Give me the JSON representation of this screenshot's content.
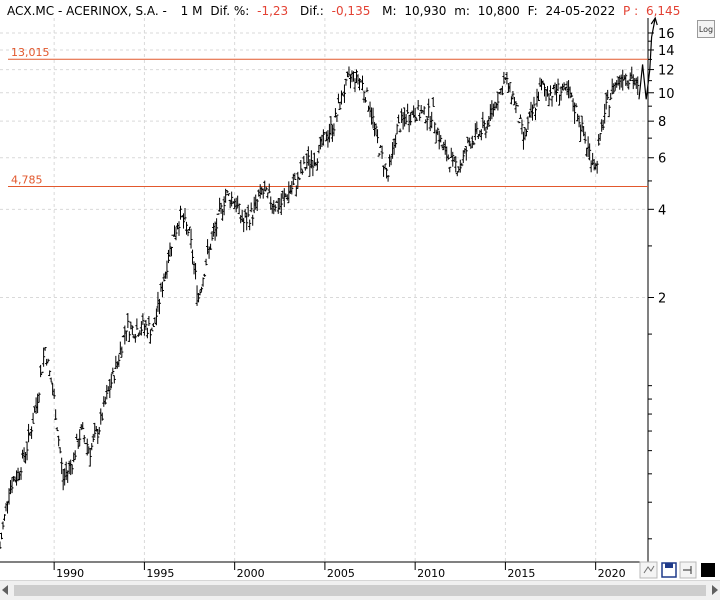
{
  "header": {
    "symbol": "ACX.MC - ACERINOX, S.A. -",
    "period": "1 M",
    "dif_pct_label": "Dif. %:",
    "dif_pct_value": "-1,23",
    "dif_label": "Dif.:",
    "dif_value": "-0,135",
    "max_label": "M:",
    "max_value": "10,930",
    "min_label": "m:",
    "min_value": "10,800",
    "date_label": "F:",
    "date_value": "24-05-2022",
    "p_label": "P :",
    "p_value": "6,145"
  },
  "log_button": "Log",
  "colors": {
    "accent_red": "#e34234",
    "line_orange": "#e2582d",
    "bars": "#000000",
    "grid": "#d9d9d9",
    "arrow": "#1f3a8a"
  },
  "chart_data": {
    "type": "bar",
    "y_scale": "log",
    "ylim": [
      0.25,
      18
    ],
    "xlim": [
      1987.0,
      2022.9
    ],
    "x_ticks": [
      "1990",
      "1995",
      "2000",
      "2005",
      "2010",
      "2015",
      "2020"
    ],
    "y_ticks": [
      "2",
      "4",
      "6",
      "8",
      "10",
      "12",
      "14",
      "16"
    ],
    "grid": true,
    "horizontal_lines": [
      {
        "label": "13,015",
        "value": 13.015
      },
      {
        "label": "4,785",
        "value": 4.785
      }
    ],
    "series": [
      {
        "x": [
          1987.0,
          1987.5,
          1988.0,
          1988.5,
          1989.0,
          1989.5,
          1990.0,
          1990.5,
          1991.0,
          1991.5,
          1992.0,
          1992.5,
          1993.0,
          1993.5,
          1994.0,
          1994.5,
          1995.0,
          1995.5,
          1996.0,
          1996.5,
          1997.0,
          1997.5,
          1998.0,
          1998.5,
          1999.0,
          1999.5,
          2000.0,
          2000.5,
          2001.0,
          2001.5,
          2002.0,
          2002.5,
          2003.0,
          2003.5,
          2004.0,
          2004.5,
          2005.0,
          2005.5,
          2006.0,
          2006.5,
          2007.0,
          2007.5,
          2008.0,
          2008.5,
          2009.0,
          2009.5,
          2010.0,
          2010.5,
          2011.0,
          2011.5,
          2012.0,
          2012.5,
          2013.0,
          2013.5,
          2014.0,
          2014.5,
          2015.0,
          2015.5,
          2016.0,
          2016.5,
          2017.0,
          2017.5,
          2018.0,
          2018.5,
          2019.0,
          2019.5,
          2020.0,
          2020.5,
          2021.0,
          2021.5,
          2022.0,
          2022.4
        ],
        "y": [
          0.28,
          0.45,
          0.5,
          0.62,
          0.85,
          1.35,
          0.9,
          0.48,
          0.55,
          0.7,
          0.6,
          0.72,
          0.95,
          1.2,
          1.6,
          1.55,
          1.6,
          1.55,
          2.2,
          3.1,
          3.8,
          3.3,
          2.0,
          2.8,
          3.5,
          4.5,
          4.3,
          3.6,
          3.9,
          4.6,
          4.3,
          4.1,
          4.6,
          5.0,
          5.8,
          6.0,
          7.0,
          7.8,
          10.0,
          11.5,
          11.0,
          9.0,
          6.5,
          5.2,
          7.5,
          8.3,
          8.6,
          8.4,
          8.5,
          6.5,
          5.8,
          5.6,
          6.8,
          7.2,
          7.8,
          9.5,
          11.0,
          9.5,
          7.0,
          8.5,
          10.5,
          10.0,
          10.3,
          9.8,
          8.5,
          6.6,
          5.6,
          8.5,
          10.5,
          11.6,
          11.3,
          10.0
        ]
      }
    ],
    "projection": {
      "x": [
        2022.4,
        2022.6,
        2022.8,
        2023.0,
        2023.1,
        2023.3
      ],
      "y": [
        9.5,
        12.5,
        9.5,
        12.0,
        15.5,
        18.0
      ]
    }
  }
}
